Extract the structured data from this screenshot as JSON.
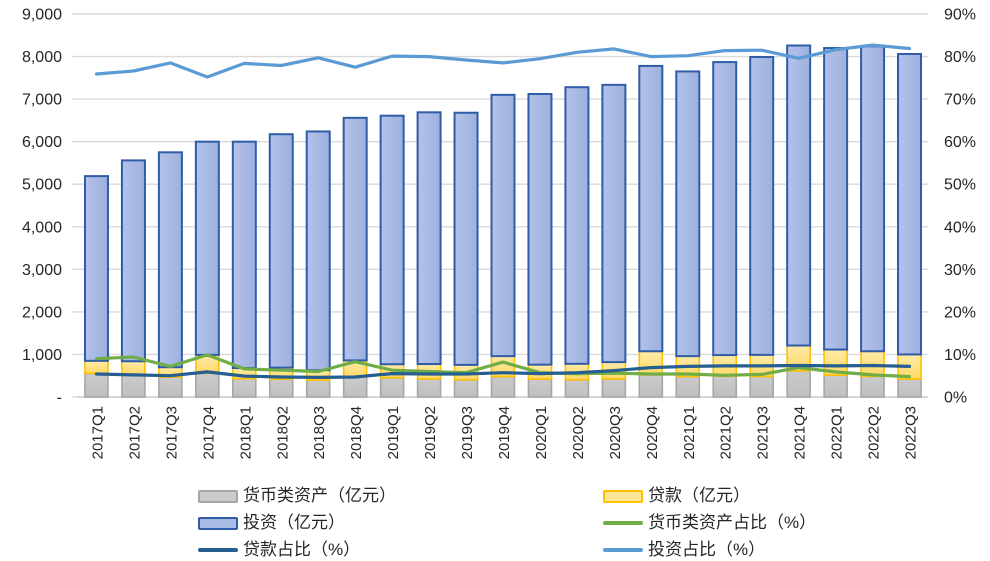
{
  "chart_data": {
    "type": "combo-stacked-bar-line",
    "title": "",
    "categories": [
      "2017Q1",
      "2017Q2",
      "2017Q3",
      "2017Q4",
      "2018Q1",
      "2018Q2",
      "2018Q3",
      "2018Q4",
      "2019Q1",
      "2019Q2",
      "2019Q3",
      "2019Q4",
      "2020Q1",
      "2020Q2",
      "2020Q3",
      "2020Q4",
      "2021Q1",
      "2021Q2",
      "2021Q3",
      "2021Q4",
      "2022Q1",
      "2022Q2",
      "2022Q3"
    ],
    "bar_series": [
      {
        "key": "monetary-assets",
        "name": "货币类资产（亿元）",
        "axis": "left",
        "values": [
          555,
          520,
          470,
          560,
          430,
          420,
          395,
          470,
          450,
          425,
          405,
          480,
          420,
          405,
          425,
          520,
          480,
          490,
          480,
          615,
          515,
          485,
          420
        ],
        "fill": "#CBCBCB",
        "fill2": "#BFBFBF",
        "border": "#A6A6A6"
      },
      {
        "key": "loans",
        "name": "贷款（亿元）",
        "axis": "left",
        "values": [
          295,
          320,
          230,
          430,
          250,
          270,
          235,
          390,
          320,
          350,
          350,
          480,
          340,
          375,
          395,
          555,
          480,
          495,
          510,
          595,
          600,
          590,
          580
        ],
        "fill": "#FFEBA8",
        "fill2": "#FFD966",
        "border": "#FFC000"
      },
      {
        "key": "investment",
        "name": "投资（亿元）",
        "axis": "left",
        "values": [
          4340,
          4720,
          5050,
          5010,
          5320,
          5485,
          5610,
          5700,
          5840,
          5915,
          5925,
          6140,
          6360,
          6500,
          6515,
          6705,
          6690,
          6885,
          7000,
          7050,
          7085,
          7165,
          7060
        ],
        "fill": "#B3C2EA",
        "fill2": "#9DB0DD",
        "border": "#2F5CA6"
      }
    ],
    "line_series": [
      {
        "key": "monetary-assets-ratio",
        "name": "货币类资产占比（%）",
        "axis": "right",
        "color": "#70AD47",
        "values": [
          9.0,
          9.4,
          7.2,
          9.9,
          6.6,
          6.3,
          6.0,
          8.3,
          6.3,
          6.0,
          5.7,
          8.2,
          5.7,
          5.5,
          5.6,
          5.4,
          5.4,
          5.1,
          5.3,
          6.9,
          5.9,
          5.2,
          4.8
        ]
      },
      {
        "key": "loans-ratio",
        "name": "贷款占比（%）",
        "axis": "right",
        "color": "#255E91",
        "values": [
          5.4,
          5.2,
          5.0,
          5.9,
          4.9,
          4.7,
          4.6,
          4.7,
          5.5,
          5.4,
          5.4,
          5.7,
          5.5,
          5.7,
          6.2,
          6.9,
          7.2,
          7.3,
          7.3,
          7.4,
          7.3,
          7.4,
          7.2
        ]
      },
      {
        "key": "investment-ratio",
        "name": "投资占比（%）",
        "axis": "right",
        "color": "#5B9BD5",
        "values": [
          75.9,
          76.6,
          78.5,
          75.2,
          78.4,
          77.9,
          79.7,
          77.5,
          80.1,
          80.0,
          79.2,
          78.5,
          79.5,
          81.0,
          81.8,
          80.0,
          80.2,
          81.4,
          81.5,
          79.6,
          81.6,
          82.7,
          81.9
        ]
      }
    ],
    "left_axis": {
      "min": 0,
      "max": 9000,
      "step": 1000,
      "tick_labels": [
        "-",
        "1,000",
        "2,000",
        "3,000",
        "4,000",
        "5,000",
        "6,000",
        "7,000",
        "8,000",
        "9,000"
      ]
    },
    "right_axis": {
      "min": 0,
      "max": 90,
      "step": 10,
      "tick_labels": [
        "0%",
        "10%",
        "20%",
        "30%",
        "40%",
        "50%",
        "60%",
        "70%",
        "80%",
        "90%"
      ]
    },
    "grid": true,
    "legend_position": "bottom"
  },
  "colors": {
    "gridline": "#D9D9D9",
    "axis_line": "#C9C9C9",
    "tick": "#D9D9D9",
    "axis_text": "#262626",
    "legend_text": "#262626",
    "background": "#FFFFFF"
  },
  "legend": {
    "col1": [
      {
        "label": "货币类资产（亿元）",
        "swatch": "bar",
        "fill": "#CBCBCB",
        "border": "#A6A6A6"
      },
      {
        "label": "投资（亿元）",
        "swatch": "bar",
        "fill": "#A9BCE5",
        "border": "#2F5CA6"
      },
      {
        "label": "贷款占比（%）",
        "swatch": "line",
        "fill": "#255E91",
        "border": "#255E91"
      }
    ],
    "col2": [
      {
        "label": "贷款（亿元）",
        "swatch": "bar",
        "fill": "#FFE699",
        "border": "#FFC000"
      },
      {
        "label": "货币类资产占比（%）",
        "swatch": "line",
        "fill": "#70AD47",
        "border": "#70AD47"
      },
      {
        "label": "投资占比（%）",
        "swatch": "line",
        "fill": "#5B9BD5",
        "border": "#5B9BD5"
      }
    ]
  }
}
